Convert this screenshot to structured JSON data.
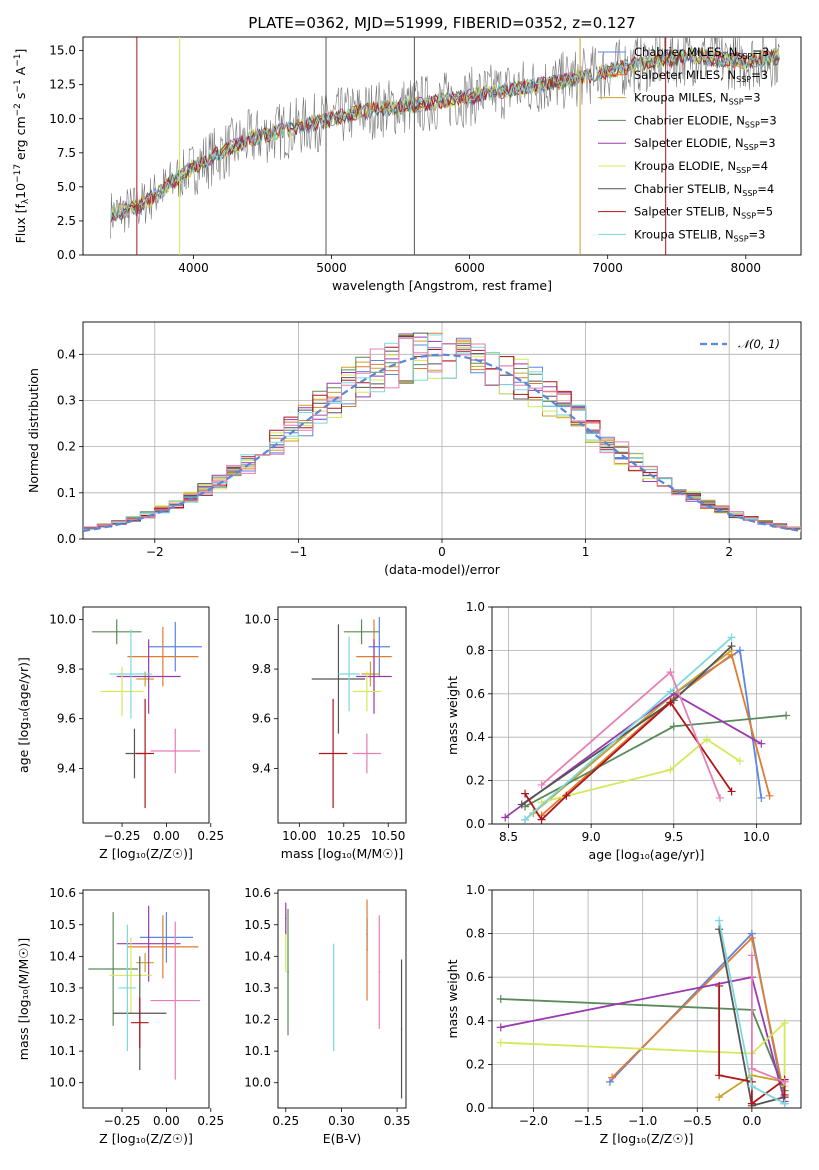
{
  "palette": {
    "chabrier_miles": "#5b86e5",
    "salpeter_miles": "#e07b30",
    "kroupa_miles": "#c9a227",
    "chabrier_elodie": "#5a8a5a",
    "salpeter_elodie": "#9a3ab0",
    "kroupa_elodie": "#d4e85a",
    "chabrier_stelib": "#555555",
    "salpeter_stelib": "#b0151b",
    "kroupa_stelib": "#7dd8e0",
    "extra_pink": "#e87fb4",
    "data_grey": "#7a7a7a",
    "normal_curve": "#5b86d6"
  },
  "chart_data": [
    {
      "id": "spectrum",
      "type": "line",
      "title": "PLATE=0362, MJD=51999, FIBERID=0352, z=0.127",
      "xlabel": "wavelength [Angstrom, rest frame]",
      "ylabel_parts": [
        "Flux [f",
        "λ",
        "10",
        "−17",
        " erg cm",
        "−2",
        " s",
        "−1",
        " A",
        "−1",
        "]"
      ],
      "xlim": [
        3200,
        8400
      ],
      "ylim": [
        0,
        16
      ],
      "x_ticks": [
        "4000",
        "5000",
        "6000",
        "7000",
        "8000"
      ],
      "y_ticks": [
        "0.0",
        "2.5",
        "5.0",
        "7.5",
        "10.0",
        "12.5",
        "15.0"
      ],
      "grid": false,
      "legend_position": "right",
      "legend": [
        {
          "model": "Chabrier MILES",
          "n": "3"
        },
        {
          "model": "Salpeter MILES",
          "n": "3"
        },
        {
          "model": "Kroupa MILES",
          "n": "3"
        },
        {
          "model": "Chabrier ELODIE",
          "n": "3"
        },
        {
          "model": "Salpeter ELODIE",
          "n": "3"
        },
        {
          "model": "Kroupa ELODIE",
          "n": "4"
        },
        {
          "model": "Chabrier STELIB",
          "n": "4"
        },
        {
          "model": "Salpeter STELIB",
          "n": "5"
        },
        {
          "model": "Kroupa STELIB",
          "n": "3"
        }
      ],
      "nssp_label": "N",
      "nssp_sub": "SSP",
      "continuum": {
        "x": [
          3400,
          3600,
          3800,
          4000,
          4200,
          4400,
          4600,
          4800,
          5000,
          5200,
          5400,
          5600,
          5800,
          6000,
          6200,
          6400,
          6600,
          6800,
          7000,
          7200,
          7400,
          7600,
          7800,
          8000,
          8200
        ],
        "y": [
          3.0,
          3.5,
          5.0,
          6.5,
          7.5,
          8.5,
          9.0,
          9.5,
          10.0,
          10.5,
          10.8,
          11.0,
          11.3,
          11.6,
          12.0,
          12.3,
          12.6,
          13.0,
          13.5,
          14.0,
          14.3,
          14.6,
          14.4,
          14.2,
          14.5
        ]
      }
    },
    {
      "id": "residuals",
      "type": "line",
      "xlabel": "(data-model)/error",
      "ylabel": "Normed distribution",
      "xlim": [
        -2.5,
        2.5
      ],
      "ylim": [
        0,
        0.47
      ],
      "x_ticks": [
        "−2",
        "−1",
        "0",
        "1",
        "2"
      ],
      "y_ticks": [
        "0.0",
        "0.1",
        "0.2",
        "0.3",
        "0.4"
      ],
      "grid": true,
      "legend_position": "top-right",
      "legend_label": "𝒩(0, 1)",
      "normal_curve": {
        "mu": 0,
        "sigma": 1
      },
      "bin_width": 0.1
    },
    {
      "id": "age_vs_Z",
      "type": "scatter",
      "xlabel": "Z [log₁₀(Z/Z☉)]",
      "ylabel": "age  [log₁₀(age/yr)]",
      "xlim": [
        -0.47,
        0.24
      ],
      "ylim": [
        9.18,
        10.05
      ],
      "x_ticks": [
        "−0.25",
        "0.00",
        "0.25"
      ],
      "y_ticks": [
        "9.4",
        "9.6",
        "9.8",
        "10.0"
      ],
      "grid": false,
      "points": [
        {
          "model": "Chabrier MILES",
          "x": 0.05,
          "y": 9.89,
          "xerr": 0.15,
          "yerr": 0.1
        },
        {
          "model": "Salpeter MILES",
          "x": -0.02,
          "y": 9.85,
          "xerr": 0.2,
          "yerr": 0.12
        },
        {
          "model": "Kroupa MILES",
          "x": -0.12,
          "y": 9.76,
          "xerr": 0.05,
          "yerr": 0.03
        },
        {
          "model": "Chabrier ELODIE",
          "x": -0.28,
          "y": 9.95,
          "xerr": 0.14,
          "yerr": 0.05
        },
        {
          "model": "Salpeter ELODIE",
          "x": -0.1,
          "y": 9.77,
          "xerr": 0.18,
          "yerr": 0.15
        },
        {
          "model": "Kroupa ELODIE",
          "x": -0.25,
          "y": 9.71,
          "xerr": 0.12,
          "yerr": 0.1
        },
        {
          "model": "Chabrier STELIB",
          "x": -0.18,
          "y": 9.46,
          "xerr": 0.05,
          "yerr": 0.1
        },
        {
          "model": "Salpeter STELIB",
          "x": -0.12,
          "y": 9.46,
          "xerr": 0.05,
          "yerr": 0.22
        },
        {
          "model": "Kroupa STELIB",
          "x": -0.2,
          "y": 9.78,
          "xerr": 0.12,
          "yerr": 0.18
        },
        {
          "model": "",
          "x": 0.05,
          "y": 9.47,
          "xerr": 0.14,
          "yerr": 0.09
        }
      ]
    },
    {
      "id": "age_vs_mass",
      "type": "scatter",
      "xlabel": "mass [log₁₀(M/M☉)]",
      "ylabel": "",
      "xlim": [
        9.88,
        10.6
      ],
      "ylim": [
        9.18,
        10.05
      ],
      "x_ticks": [
        "10.00",
        "10.25",
        "10.50"
      ],
      "y_ticks": [
        "9.4",
        "9.6",
        "9.8",
        "10.0"
      ],
      "grid": false,
      "points": [
        {
          "model": "Chabrier MILES",
          "x": 10.45,
          "y": 9.89,
          "xerr": 0.06,
          "yerr": 0.12
        },
        {
          "model": "Salpeter MILES",
          "x": 10.42,
          "y": 9.85,
          "xerr": 0.1,
          "yerr": 0.15
        },
        {
          "model": "Kroupa MILES",
          "x": 10.4,
          "y": 9.78,
          "xerr": 0.05,
          "yerr": 0.05
        },
        {
          "model": "Chabrier ELODIE",
          "x": 10.35,
          "y": 9.95,
          "xerr": 0.1,
          "yerr": 0.05
        },
        {
          "model": "Salpeter ELODIE",
          "x": 10.42,
          "y": 9.77,
          "xerr": 0.1,
          "yerr": 0.15
        },
        {
          "model": "Kroupa ELODIE",
          "x": 10.38,
          "y": 9.71,
          "xerr": 0.08,
          "yerr": 0.08
        },
        {
          "model": "Chabrier STELIB",
          "x": 10.22,
          "y": 9.76,
          "xerr": 0.15,
          "yerr": 0.22
        },
        {
          "model": "Salpeter STELIB",
          "x": 10.19,
          "y": 9.46,
          "xerr": 0.08,
          "yerr": 0.22
        },
        {
          "model": "Kroupa STELIB",
          "x": 10.28,
          "y": 9.78,
          "xerr": 0.06,
          "yerr": 0.15
        },
        {
          "model": "",
          "x": 10.38,
          "y": 9.46,
          "xerr": 0.08,
          "yerr": 0.08
        }
      ]
    },
    {
      "id": "weight_vs_age",
      "type": "line",
      "xlabel": "age  [log₁₀(age/yr)]",
      "ylabel": "mass weight",
      "xlim": [
        8.4,
        10.27
      ],
      "ylim": [
        0,
        1.0
      ],
      "x_ticks": [
        "8.5",
        "9.0",
        "9.5",
        "10.0"
      ],
      "y_ticks": [
        "0.0",
        "0.2",
        "0.4",
        "0.6",
        "0.8",
        "1.0"
      ],
      "grid": true,
      "series": [
        {
          "model": "Chabrier MILES",
          "x": [
            8.6,
            9.5,
            9.9,
            10.03
          ],
          "y": [
            0.02,
            0.6,
            0.8,
            0.12
          ]
        },
        {
          "model": "Salpeter MILES",
          "x": [
            8.7,
            9.5,
            9.85,
            10.08
          ],
          "y": [
            0.04,
            0.58,
            0.78,
            0.13
          ]
        },
        {
          "model": "Kroupa MILES",
          "x": [
            8.65,
            9.5,
            9.85
          ],
          "y": [
            0.05,
            0.6,
            0.8
          ]
        },
        {
          "model": "Chabrier ELODIE",
          "x": [
            8.6,
            9.5,
            10.18
          ],
          "y": [
            0.08,
            0.45,
            0.5
          ]
        },
        {
          "model": "Salpeter ELODIE",
          "x": [
            8.48,
            9.5,
            10.03
          ],
          "y": [
            0.03,
            0.6,
            0.37
          ]
        },
        {
          "model": "Kroupa ELODIE",
          "x": [
            8.7,
            9.48,
            9.7,
            9.9
          ],
          "y": [
            0.1,
            0.25,
            0.39,
            0.29
          ]
        },
        {
          "model": "Chabrier STELIB",
          "x": [
            8.58,
            9.5,
            9.85
          ],
          "y": [
            0.09,
            0.57,
            0.82
          ]
        },
        {
          "model": "Salpeter STELIB",
          "x": [
            8.6,
            8.7,
            8.85,
            9.48,
            9.85
          ],
          "y": [
            0.14,
            0.02,
            0.13,
            0.56,
            0.15
          ]
        },
        {
          "model": "Kroupa STELIB",
          "x": [
            8.6,
            9.48,
            9.85
          ],
          "y": [
            0.02,
            0.61,
            0.86
          ]
        },
        {
          "model": "",
          "x": [
            8.7,
            9.48,
            9.78
          ],
          "y": [
            0.18,
            0.7,
            0.12
          ]
        }
      ]
    },
    {
      "id": "mass_vs_Z",
      "type": "scatter",
      "xlabel": "Z [log₁₀(Z/Z☉)]",
      "ylabel": "mass [log₁₀(M/M☉)]",
      "xlim": [
        -0.47,
        0.24
      ],
      "ylim": [
        9.92,
        10.61
      ],
      "x_ticks": [
        "−0.25",
        "0.00",
        "0.25"
      ],
      "y_ticks": [
        "10.0",
        "10.1",
        "10.2",
        "10.3",
        "10.4",
        "10.5",
        "10.6"
      ],
      "grid": false,
      "points": [
        {
          "model": "Chabrier MILES",
          "x": 0.0,
          "y": 10.46,
          "xerr": 0.15,
          "yerr": 0.08
        },
        {
          "model": "Salpeter MILES",
          "x": -0.02,
          "y": 10.43,
          "xerr": 0.2,
          "yerr": 0.1
        },
        {
          "model": "Kroupa MILES",
          "x": -0.12,
          "y": 10.38,
          "xerr": 0.05,
          "yerr": 0.03
        },
        {
          "model": "Chabrier ELODIE",
          "x": -0.3,
          "y": 10.36,
          "xerr": 0.14,
          "yerr": 0.18
        },
        {
          "model": "Salpeter ELODIE",
          "x": -0.1,
          "y": 10.44,
          "xerr": 0.18,
          "yerr": 0.12
        },
        {
          "model": "Kroupa ELODIE",
          "x": -0.2,
          "y": 10.34,
          "xerr": 0.12,
          "yerr": 0.12
        },
        {
          "model": "Chabrier STELIB",
          "x": -0.15,
          "y": 10.22,
          "xerr": 0.15,
          "yerr": 0.18
        },
        {
          "model": "Salpeter STELIB",
          "x": -0.15,
          "y": 10.19,
          "xerr": 0.05,
          "yerr": 0.08
        },
        {
          "model": "Kroupa STELIB",
          "x": -0.22,
          "y": 10.3,
          "xerr": 0.05,
          "yerr": 0.2
        },
        {
          "model": "",
          "x": 0.05,
          "y": 10.26,
          "xerr": 0.14,
          "yerr": 0.25
        }
      ]
    },
    {
      "id": "mass_vs_ebv",
      "type": "scatter",
      "xlabel": "E(B-V)",
      "ylabel": "",
      "xlim": [
        0.243,
        0.358
      ],
      "ylim": [
        9.92,
        10.61
      ],
      "x_ticks": [
        "0.25",
        "0.30",
        "0.35"
      ],
      "y_ticks": [
        "10.0",
        "10.1",
        "10.2",
        "10.3",
        "10.4",
        "10.5",
        "10.6"
      ],
      "grid": false,
      "points": [
        {
          "model": "Chabrier MILES",
          "x": 0.323,
          "y": 10.47,
          "xerr": 0.0,
          "yerr": 0.05
        },
        {
          "model": "Salpeter MILES",
          "x": 0.323,
          "y": 10.42,
          "xerr": 0.0,
          "yerr": 0.16
        },
        {
          "model": "Kroupa ELODIE",
          "x": 0.25,
          "y": 10.45,
          "xerr": 0.0,
          "yerr": 0.1
        },
        {
          "model": "Chabrier ELODIE",
          "x": 0.252,
          "y": 10.35,
          "xerr": 0.0,
          "yerr": 0.2
        },
        {
          "model": "Salpeter ELODIE",
          "x": 0.25,
          "y": 10.52,
          "xerr": 0.0,
          "yerr": 0.05
        },
        {
          "model": "Kroupa STELIB",
          "x": 0.293,
          "y": 10.27,
          "xerr": 0.0,
          "yerr": 0.17
        },
        {
          "model": "Chabrier STELIB",
          "x": 0.354,
          "y": 10.17,
          "xerr": 0.0,
          "yerr": 0.22
        },
        {
          "model": "",
          "x": 0.334,
          "y": 10.35,
          "xerr": 0.0,
          "yerr": 0.18
        }
      ]
    },
    {
      "id": "weight_vs_Z",
      "type": "line",
      "xlabel": "Z [log₁₀(Z/Z☉)]",
      "ylabel": "mass weight",
      "xlim": [
        -2.38,
        0.45
      ],
      "ylim": [
        0,
        1.0
      ],
      "x_ticks": [
        "−2.0",
        "−1.5",
        "−1.0",
        "−0.5",
        "0.0"
      ],
      "y_ticks": [
        "0.0",
        "0.2",
        "0.4",
        "0.6",
        "0.8",
        "1.0"
      ],
      "grid": true,
      "series": [
        {
          "model": "Chabrier MILES",
          "x": [
            -1.3,
            0.0,
            0.3
          ],
          "y": [
            0.12,
            0.8,
            0.02
          ]
        },
        {
          "model": "Salpeter MILES",
          "x": [
            -1.28,
            0.0,
            0.3
          ],
          "y": [
            0.14,
            0.78,
            0.05
          ]
        },
        {
          "model": "Kroupa MILES",
          "x": [
            -0.3,
            0.0,
            0.3
          ],
          "y": [
            0.05,
            0.15,
            0.12
          ]
        },
        {
          "model": "Chabrier ELODIE",
          "x": [
            -2.3,
            0.0,
            0.3
          ],
          "y": [
            0.5,
            0.45,
            0.08
          ]
        },
        {
          "model": "Salpeter ELODIE",
          "x": [
            -2.3,
            0.0,
            0.3
          ],
          "y": [
            0.37,
            0.6,
            0.03
          ]
        },
        {
          "model": "Kroupa ELODIE",
          "x": [
            -2.3,
            0.0,
            0.3,
            0.3
          ],
          "y": [
            0.3,
            0.25,
            0.39,
            0.1
          ]
        },
        {
          "model": "Chabrier STELIB",
          "x": [
            -0.3,
            0.0,
            0.3
          ],
          "y": [
            0.82,
            0.01,
            0.05
          ]
        },
        {
          "model": "Salpeter STELIB",
          "x": [
            -0.3,
            -0.3,
            0.0,
            0.0,
            0.3,
            0.3
          ],
          "y": [
            0.56,
            0.15,
            0.12,
            0.02,
            0.13,
            0.06
          ]
        },
        {
          "model": "Kroupa STELIB",
          "x": [
            -0.3,
            0.0,
            0.3
          ],
          "y": [
            0.86,
            0.1,
            0.02
          ]
        },
        {
          "model": "",
          "x": [
            0.0,
            0.0,
            0.3
          ],
          "y": [
            0.7,
            0.18,
            0.12
          ]
        }
      ]
    }
  ]
}
